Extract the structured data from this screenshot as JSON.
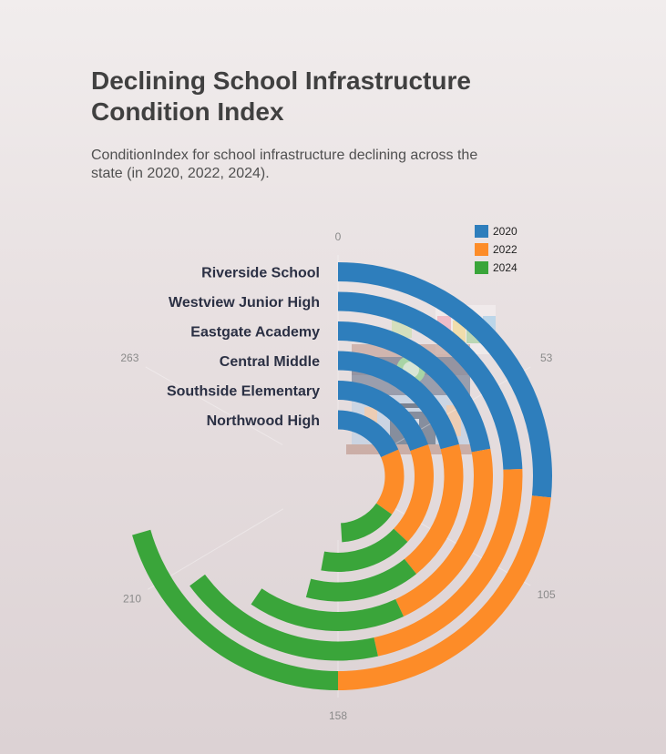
{
  "header": {
    "title": "Declining School Infrastructure Condition Index",
    "subtitle": "ConditionIndex for school infrastructure declining across the state (in 2020, 2022, 2024)."
  },
  "chart_data": {
    "type": "bar",
    "layout": "radial-stacked",
    "categories": [
      "Riverside School",
      "Westview Junior High",
      "Eastgate Academy",
      "Central Middle",
      "Southside Elementary",
      "Northwood High"
    ],
    "series": [
      {
        "name": "2020",
        "color": "#2e7ebc",
        "values": [
          84,
          77,
          70,
          66,
          62,
          58
        ]
      },
      {
        "name": "2022",
        "color": "#fd8c28",
        "values": [
          74,
          70,
          66,
          58,
          55,
          52
        ]
      },
      {
        "name": "2024",
        "color": "#3aa53a",
        "values": [
          65,
          58,
          52,
          47,
          50,
          45
        ]
      }
    ],
    "axis": {
      "ticks": [
        0,
        53,
        105,
        158,
        210,
        263
      ],
      "max": 316
    },
    "legend": {
      "position": "top-right"
    }
  }
}
